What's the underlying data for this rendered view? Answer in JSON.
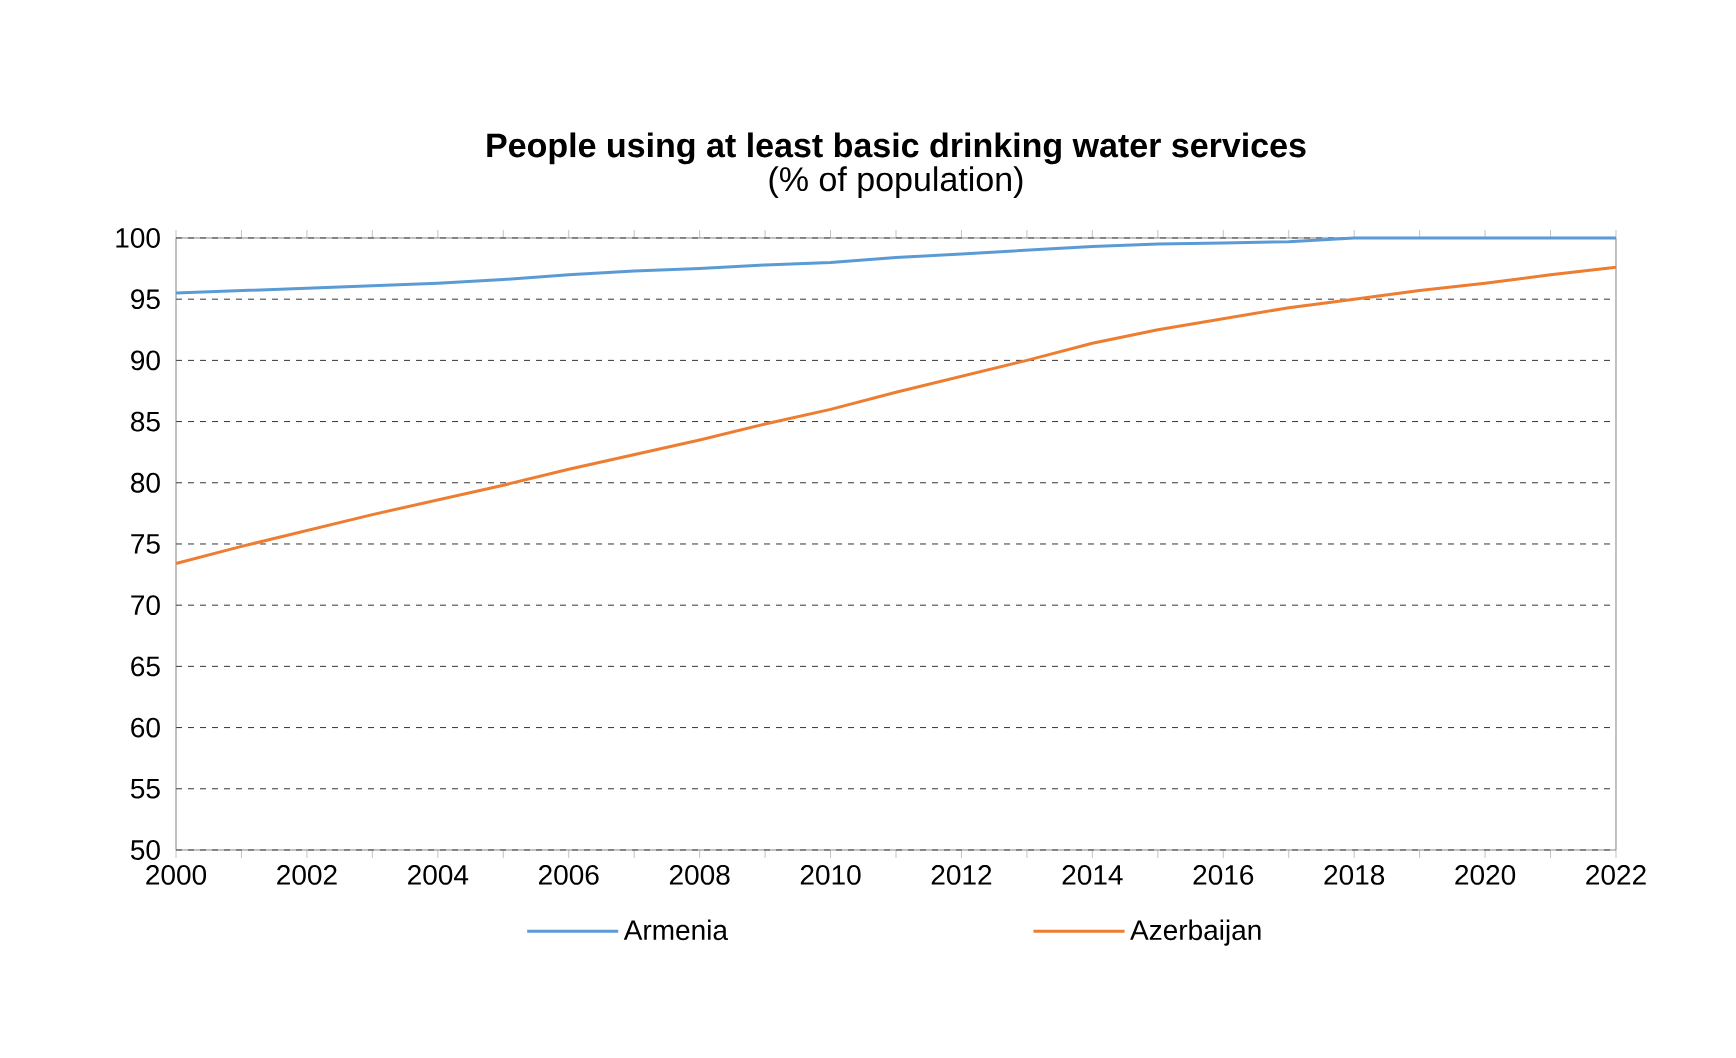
{
  "chart_data": {
    "type": "line",
    "title": "People using at least basic drinking water services",
    "subtitle": "(% of population)",
    "x": [
      2000,
      2001,
      2002,
      2003,
      2004,
      2005,
      2006,
      2007,
      2008,
      2009,
      2010,
      2011,
      2012,
      2013,
      2014,
      2015,
      2016,
      2017,
      2018,
      2019,
      2020,
      2021,
      2022
    ],
    "series": [
      {
        "name": "Armenia",
        "color": "#5b9bd5",
        "values": [
          95.5,
          95.7,
          95.9,
          96.1,
          96.3,
          96.6,
          97.0,
          97.3,
          97.5,
          97.8,
          98.0,
          98.4,
          98.7,
          99.0,
          99.3,
          99.5,
          99.6,
          99.7,
          100,
          100,
          100,
          100,
          100
        ]
      },
      {
        "name": "Azerbaijan",
        "color": "#ed7d31",
        "values": [
          73.4,
          74.8,
          76.1,
          77.4,
          78.6,
          79.8,
          81.1,
          82.3,
          83.5,
          84.8,
          86.0,
          87.4,
          88.7,
          90.0,
          91.4,
          92.5,
          93.4,
          94.3,
          95.0,
          95.7,
          96.3,
          97.0,
          97.6
        ]
      }
    ],
    "xlim": [
      2000,
      2022
    ],
    "xticks": [
      2000,
      2002,
      2004,
      2006,
      2008,
      2010,
      2012,
      2014,
      2016,
      2018,
      2020,
      2022
    ],
    "ylim": [
      50,
      100
    ],
    "yticks": [
      50,
      55,
      60,
      65,
      70,
      75,
      80,
      85,
      90,
      95,
      100
    ],
    "grid": "y",
    "legend": "bottom",
    "line_style": "solid",
    "marker": "none"
  }
}
